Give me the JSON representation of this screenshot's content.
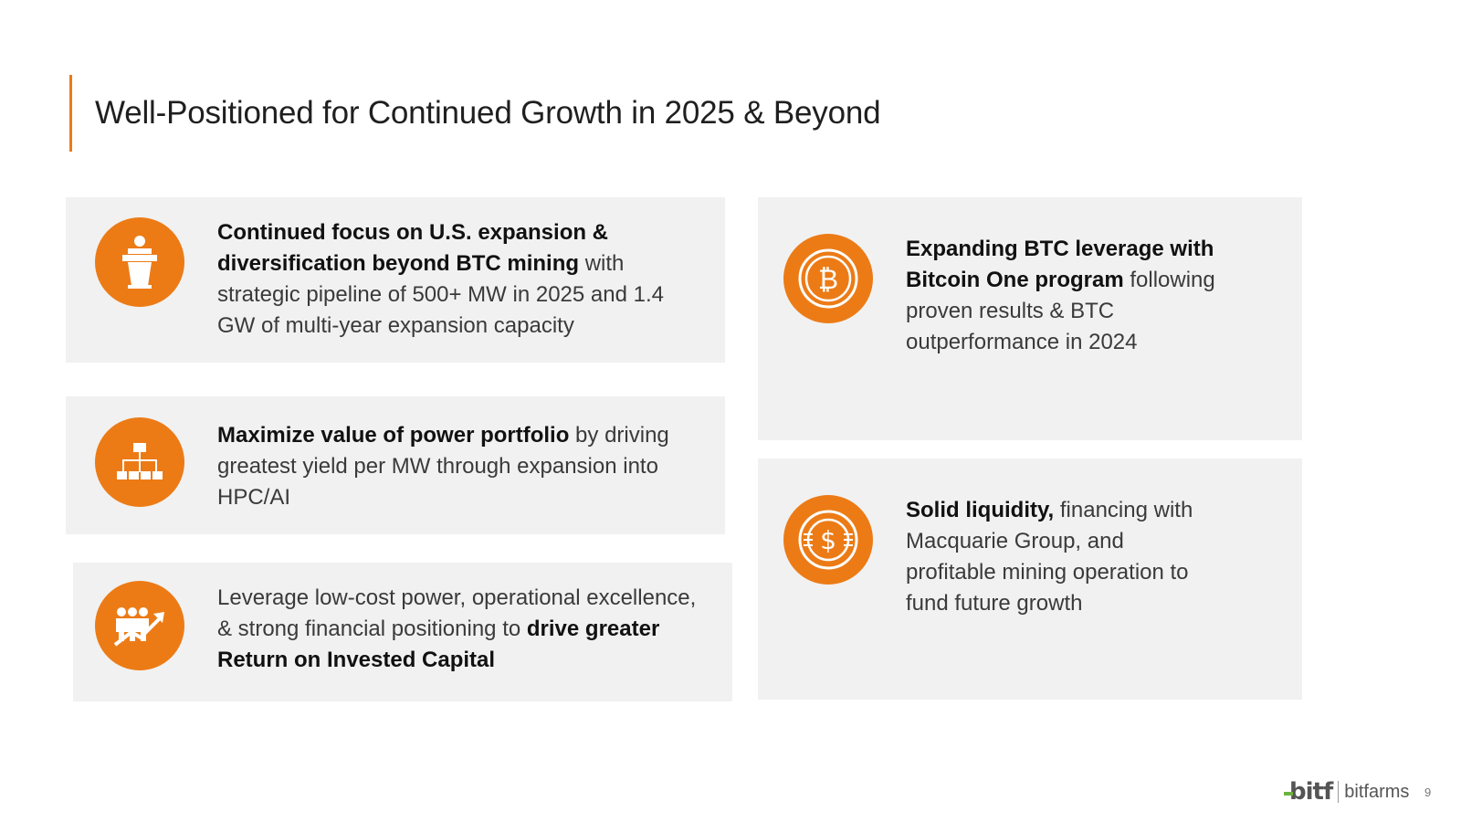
{
  "slide": {
    "title": "Well-Positioned for Continued Growth in 2025 & Beyond",
    "page_number": "9"
  },
  "cards": [
    {
      "icon": "podium-speaker-icon",
      "bold": "Continued focus on U.S. expansion & diversification beyond BTC mining",
      "rest": " with strategic pipeline of 500+ MW in 2025 and 1.4 GW of multi-year expansion capacity"
    },
    {
      "icon": "org-chart-icon",
      "bold": "Maximize value of power portfolio",
      "rest": " by driving greatest yield per MW through expansion into HPC/AI"
    },
    {
      "icon": "team-growth-icon",
      "lead": "Leverage low-cost power, operational excellence, & strong financial positioning to ",
      "bold": "drive greater Return on Invested Capital"
    },
    {
      "icon": "bitcoin-coin-icon",
      "bold": "Expanding BTC leverage with Bitcoin One program",
      "rest": " following proven results & BTC outperformance in 2024"
    },
    {
      "icon": "dollar-coin-icon",
      "bold": "Solid liquidity,",
      "rest": " financing with Macquarie Group, and profitable mining operation to fund future growth"
    }
  ],
  "footer": {
    "logo_mark": "bitf",
    "logo_word": "bitfarms"
  },
  "colors": {
    "accent": "#ec7b16",
    "card_bg": "#f1f1f1",
    "logo_green": "#6cb33f"
  }
}
